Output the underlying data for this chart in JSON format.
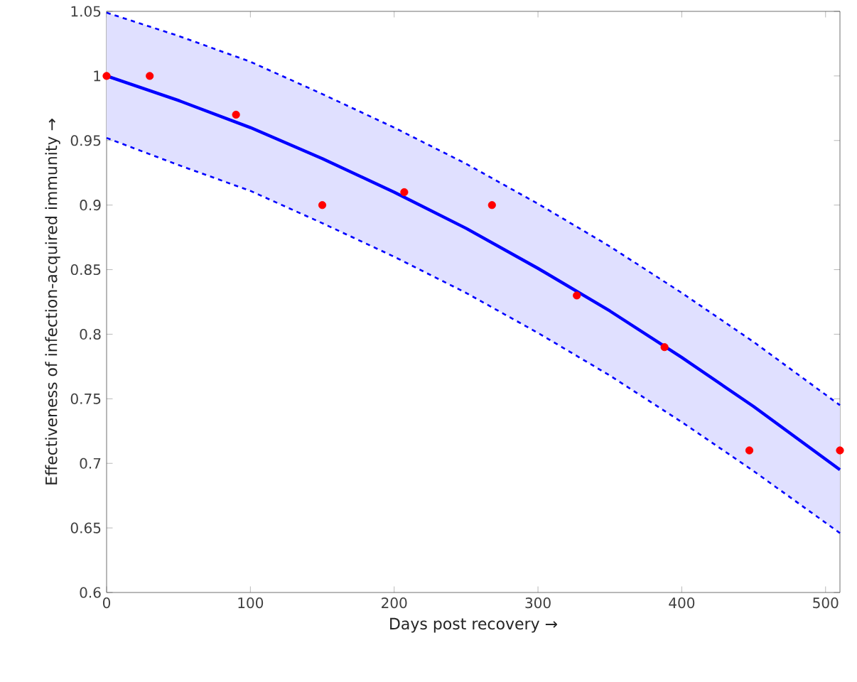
{
  "chart_data": {
    "type": "scatter",
    "xlabel": "Days post recovery →",
    "ylabel": "Effectiveness of infection-acquired immunity →",
    "xlim": [
      0,
      510
    ],
    "ylim": [
      0.6,
      1.05
    ],
    "xticks": [
      0,
      100,
      200,
      300,
      400,
      500
    ],
    "yticks": [
      0.6,
      0.65,
      0.7,
      0.75,
      0.8,
      0.85,
      0.9,
      0.95,
      1,
      1.05
    ],
    "grid": false,
    "series": [
      {
        "color": "#ff0000",
        "marker": "circle",
        "x": [
          0,
          30,
          90,
          150,
          207,
          268,
          327,
          388,
          447,
          510
        ],
        "values": [
          1.0,
          1.0,
          0.97,
          0.9,
          0.91,
          0.9,
          0.83,
          0.79,
          0.71,
          0.71
        ]
      },
      {
        "type": "line",
        "color": "#0000ff",
        "marker": "none",
        "line_style": "solid",
        "x": [
          0,
          50,
          100,
          150,
          200,
          250,
          300,
          350,
          400,
          450,
          510
        ],
        "values": [
          1.0,
          0.981,
          0.96,
          0.936,
          0.91,
          0.882,
          0.851,
          0.818,
          0.782,
          0.744,
          0.695
        ],
        "lower": [
          0.952,
          0.931,
          0.911,
          0.886,
          0.86,
          0.832,
          0.801,
          0.768,
          0.732,
          0.694,
          0.646
        ],
        "upper": [
          1.049,
          1.031,
          1.011,
          0.986,
          0.96,
          0.932,
          0.901,
          0.868,
          0.832,
          0.794,
          0.745
        ]
      },
      {
        "type": "line",
        "color": "#0000ff",
        "marker": "none",
        "line_style": "dashed",
        "x": [
          0,
          50,
          100,
          150,
          200,
          250,
          300,
          350,
          400,
          450,
          510
        ],
        "values": [
          0.952,
          0.931,
          0.911,
          0.886,
          0.86,
          0.832,
          0.801,
          0.768,
          0.732,
          0.694,
          0.646
        ]
      },
      {
        "type": "line",
        "color": "#0000ff",
        "marker": "none",
        "line_style": "dashed",
        "x": [
          0,
          50,
          100,
          150,
          200,
          250,
          300,
          350,
          400,
          450,
          510
        ],
        "values": [
          1.049,
          1.031,
          1.011,
          0.986,
          0.96,
          0.932,
          0.901,
          0.868,
          0.832,
          0.794,
          0.745
        ]
      }
    ]
  }
}
